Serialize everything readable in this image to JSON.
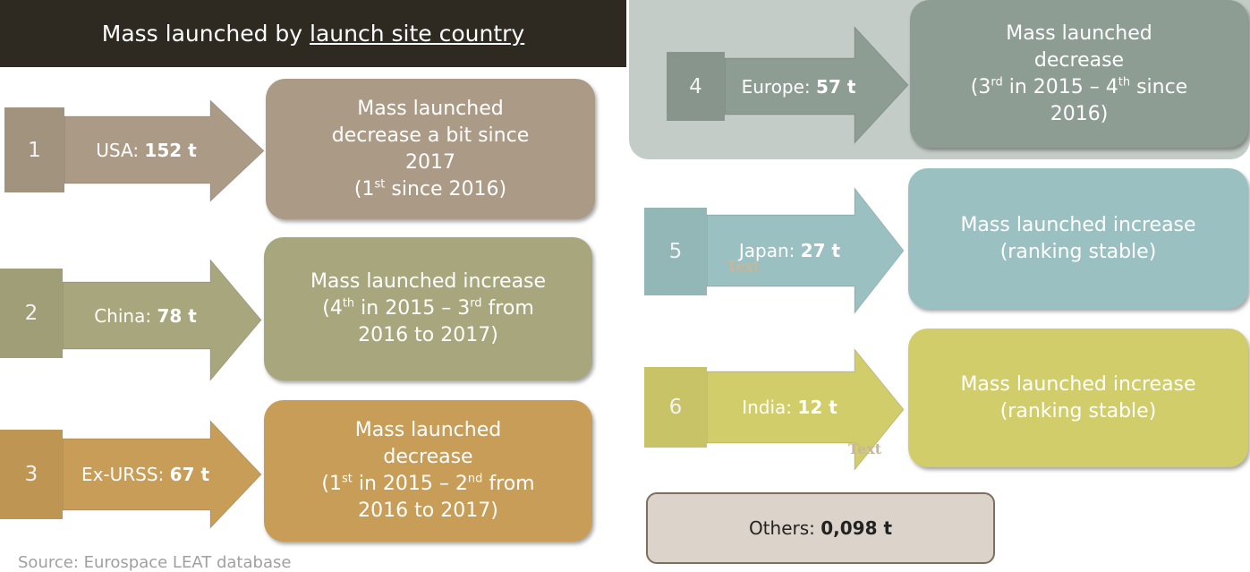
{
  "header": {
    "title_prefix": "Mass launched by ",
    "title_link": "launch site country"
  },
  "items": [
    {
      "rank": "1",
      "label": "USA: ",
      "value": "152 t",
      "color": "#ab9b86",
      "description": [
        [
          {
            "text": "Mass launched"
          }
        ],
        [
          {
            "text": "decrease a bit since"
          }
        ],
        [
          {
            "text": "2017"
          }
        ],
        [
          {
            "text": "(1"
          },
          {
            "sup": "st"
          },
          {
            "text": " since 2016)"
          }
        ]
      ]
    },
    {
      "rank": "2",
      "label": "China: ",
      "value": "78 t",
      "color": "#a8a67c",
      "description": [
        [
          {
            "text": "Mass launched increase"
          }
        ],
        [
          {
            "text": "(4"
          },
          {
            "sup": "th"
          },
          {
            "text": " in 2015 – 3"
          },
          {
            "sup": "rd"
          },
          {
            "text": " from"
          }
        ],
        [
          {
            "text": "2016 to 2017)"
          }
        ]
      ]
    },
    {
      "rank": "3",
      "label": "Ex-URSS: ",
      "value": "67 t",
      "color": "#c89d57",
      "description": [
        [
          {
            "text": "Mass launched"
          }
        ],
        [
          {
            "text": "decrease"
          }
        ],
        [
          {
            "text": "(1"
          },
          {
            "sup": "st"
          },
          {
            "text": " in 2015 – 2"
          },
          {
            "sup": "nd"
          },
          {
            "text": " from"
          }
        ],
        [
          {
            "text": "2016 to 2017)"
          }
        ]
      ]
    },
    {
      "rank": "4",
      "label": "Europe: ",
      "value": "57 t",
      "color": "#8e9d93",
      "description": [
        [
          {
            "text": "Mass launched"
          }
        ],
        [
          {
            "text": "decrease"
          }
        ],
        [
          {
            "text": "(3"
          },
          {
            "sup": "rd"
          },
          {
            "text": " in 2015 – 4"
          },
          {
            "sup": "th"
          },
          {
            "text": " since"
          }
        ],
        [
          {
            "text": "2016)"
          }
        ]
      ]
    },
    {
      "rank": "5",
      "label": "Japan: ",
      "value": "27 t",
      "color": "#9bc0c1",
      "description": [
        [
          {
            "text": "Mass launched increase"
          }
        ],
        [
          {
            "text": "(ranking stable)"
          }
        ]
      ]
    },
    {
      "rank": "6",
      "label": "India: ",
      "value": "12 t",
      "color": "#d2cd6b",
      "description": [
        [
          {
            "text": "Mass launched increase"
          }
        ],
        [
          {
            "text": "(ranking stable)"
          }
        ]
      ]
    }
  ],
  "others": {
    "label": "Others: ",
    "value": "0,098 t"
  },
  "placeholders": [
    "Text",
    "Text"
  ],
  "source": "Source: Eurospace LEAT database"
}
